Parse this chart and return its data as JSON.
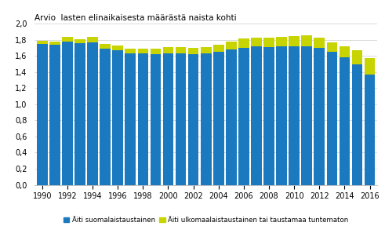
{
  "title": "Arvio  lasten elinaikaisesta määrästä naista kohti",
  "years": [
    1990,
    1991,
    1992,
    1993,
    1994,
    1995,
    1996,
    1997,
    1998,
    1999,
    2000,
    2001,
    2002,
    2003,
    2004,
    2005,
    2006,
    2007,
    2008,
    2009,
    2010,
    2011,
    2012,
    2013,
    2014,
    2015,
    2016
  ],
  "blue_values": [
    1.75,
    1.74,
    1.78,
    1.76,
    1.77,
    1.69,
    1.67,
    1.63,
    1.63,
    1.62,
    1.63,
    1.63,
    1.62,
    1.63,
    1.65,
    1.68,
    1.7,
    1.72,
    1.71,
    1.72,
    1.72,
    1.72,
    1.7,
    1.65,
    1.58,
    1.5,
    1.37
  ],
  "yellow_values": [
    0.04,
    0.04,
    0.06,
    0.05,
    0.07,
    0.06,
    0.06,
    0.06,
    0.06,
    0.07,
    0.08,
    0.08,
    0.08,
    0.08,
    0.09,
    0.1,
    0.12,
    0.11,
    0.12,
    0.12,
    0.13,
    0.14,
    0.13,
    0.12,
    0.14,
    0.17,
    0.2
  ],
  "blue_color": "#1b7abf",
  "yellow_color": "#c8d400",
  "ylim": [
    0,
    2.0
  ],
  "yticks": [
    0.0,
    0.2,
    0.4,
    0.6,
    0.8,
    1.0,
    1.2,
    1.4,
    1.6,
    1.8,
    2.0
  ],
  "legend1": "Äiti suomalaistaustainen",
  "legend2": "Äiti ulkomaalaistaustainen tai taustamaa tuntematon",
  "background_color": "#ffffff",
  "grid_color": "#cccccc"
}
